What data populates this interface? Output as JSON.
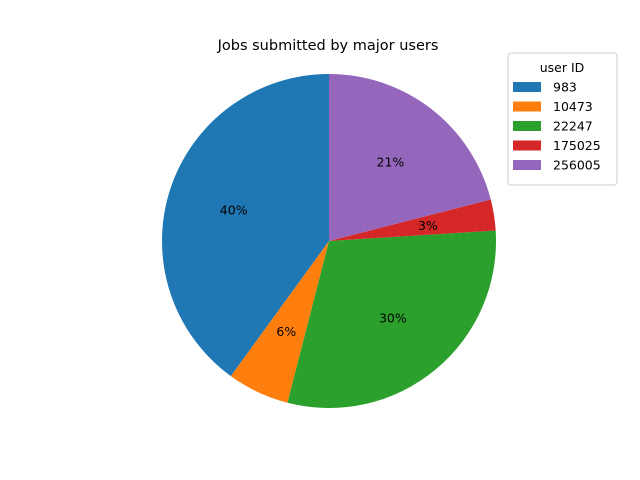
{
  "chart_data": {
    "type": "pie",
    "title": "Jobs submitted by major users",
    "categories": [
      "983",
      "10473",
      "22247",
      "175025",
      "256005"
    ],
    "values": [
      40,
      6,
      30,
      3,
      21
    ],
    "labels": [
      "40%",
      "6%",
      "30%",
      "3%",
      "21%"
    ],
    "colors": [
      "#1f77b4",
      "#ff7f0e",
      "#2ca02c",
      "#d62728",
      "#9467bd"
    ],
    "start_angle_deg": 90,
    "direction": "counterclockwise",
    "legend": {
      "title": "user ID",
      "placement": "top-right"
    }
  }
}
